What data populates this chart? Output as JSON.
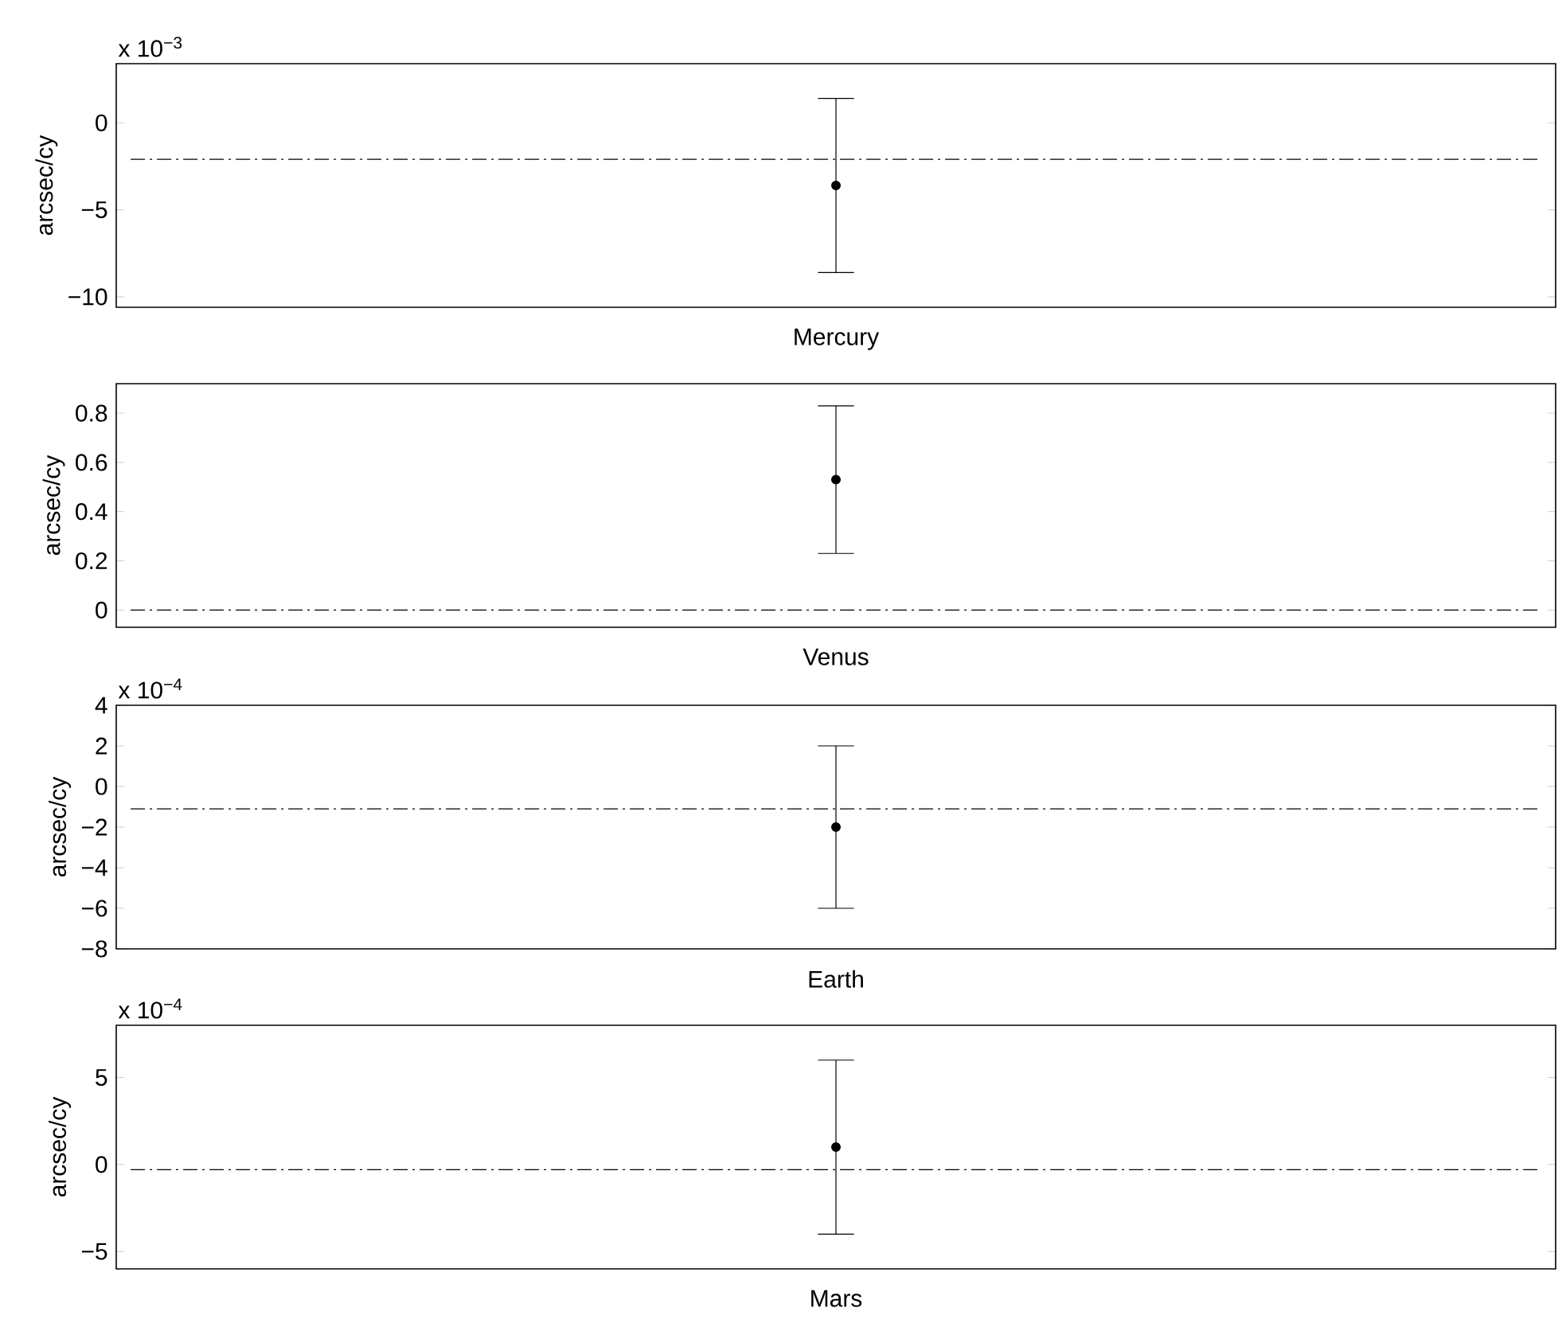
{
  "chart_data": [
    {
      "type": "scatter",
      "categories": [
        null
      ],
      "values": [
        -3.6
      ],
      "errors": [
        5.0
      ],
      "xlabel": "Mercury",
      "ylabel": "arcsec/cy",
      "ylim": [
        -10.6,
        3.4
      ],
      "yticks": [
        {
          "value": -10,
          "label": "−10"
        },
        {
          "value": -5,
          "label": "−5"
        },
        0
      ],
      "ref_lines": [
        {
          "axis": "y",
          "value": -2.1,
          "color": "#000000",
          "line_style": "dashdot"
        }
      ],
      "color": "#000000",
      "annotations": [
        "x 10$^{−3}$"
      ],
      "tick_labels": "y"
    },
    {
      "type": "scatter",
      "categories": [
        null
      ],
      "values": [
        0.53
      ],
      "errors": [
        0.3
      ],
      "xlabel": "Venus",
      "ylabel": "arcsec/cy",
      "ylim": [
        -0.07,
        0.92
      ],
      "yticks": [
        0,
        0.2,
        0.4,
        0.6,
        0.8
      ],
      "ref_lines": [
        {
          "axis": "y",
          "value": 0,
          "color": "#000000",
          "line_style": "dashdot"
        }
      ],
      "color": "#000000",
      "tick_labels": "y"
    },
    {
      "type": "scatter",
      "categories": [
        null
      ],
      "values": [
        -2
      ],
      "errors": [
        4
      ],
      "xlabel": "Earth",
      "ylabel": "arcsec/cy",
      "ylim": [
        -8,
        4
      ],
      "yticks": [
        {
          "value": -8,
          "label": "−8"
        },
        {
          "value": -6,
          "label": "−6"
        },
        {
          "value": -4,
          "label": "−4"
        },
        {
          "value": -2,
          "label": "−2"
        },
        0,
        2,
        4
      ],
      "ref_lines": [
        {
          "axis": "y",
          "value": -1.1,
          "color": "#000000",
          "line_style": "dashdot"
        }
      ],
      "color": "#000000",
      "annotations": [
        "x 10$^{−4}$"
      ],
      "tick_labels": "y"
    },
    {
      "type": "scatter",
      "categories": [
        null
      ],
      "values": [
        1
      ],
      "errors": [
        5
      ],
      "xlabel": "Mars",
      "ylabel": "arcsec/cy",
      "ylim": [
        -6,
        8
      ],
      "yticks": [
        {
          "value": -5,
          "label": "−5"
        },
        0,
        5
      ],
      "ref_lines": [
        {
          "axis": "y",
          "value": -0.3,
          "color": "#000000",
          "line_style": "dashdot"
        }
      ],
      "color": "#000000",
      "annotations": [
        "x 10$^{−4}$"
      ],
      "tick_labels": "y"
    }
  ]
}
